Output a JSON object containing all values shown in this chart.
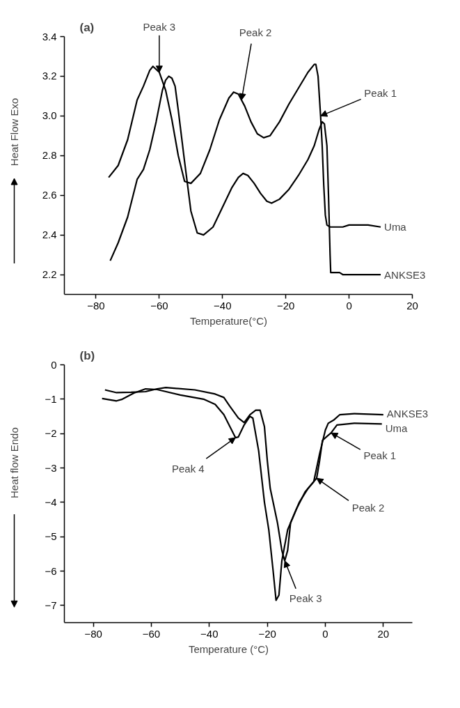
{
  "chart_data": [
    {
      "type": "line",
      "title": "(a)",
      "xlabel": "Temperature(°C)",
      "ylabel": "Heat Flow Exo",
      "xlim": [
        -90,
        20
      ],
      "ylim": [
        2.1,
        3.4
      ],
      "xticks": [
        -80,
        -60,
        -40,
        -20,
        0,
        20
      ],
      "yticks": [
        {
          "value": 2.2,
          "label": "2.2"
        },
        {
          "value": 2.4,
          "label": "2.4"
        },
        {
          "value": 2.6,
          "label": "2.6"
        },
        {
          "value": 2.8,
          "label": "2.8"
        },
        {
          "value": 3.0,
          "label": "3.0"
        },
        {
          "value": 3.2,
          "label": "3.2"
        },
        {
          "value": 3.4,
          "label": "3.4"
        }
      ],
      "grid": false,
      "series": [
        {
          "name": "Uma",
          "color": "#000000",
          "x": [
            -76,
            -73,
            -70,
            -67,
            -65,
            -63,
            -62,
            -60,
            -58,
            -56,
            -54,
            -52,
            -50,
            -47,
            -44,
            -41,
            -38,
            -36.5,
            -35,
            -33,
            -31,
            -29,
            -27,
            -25,
            -22,
            -19,
            -16,
            -13,
            -11,
            -10.5,
            -9.8,
            -9,
            -8.5,
            -8,
            -7.5,
            -7,
            -6,
            -4,
            -2,
            0,
            3,
            6,
            10
          ],
          "values": [
            2.69,
            2.75,
            2.88,
            3.08,
            3.15,
            3.23,
            3.25,
            3.22,
            3.13,
            2.98,
            2.8,
            2.67,
            2.66,
            2.71,
            2.83,
            2.98,
            3.09,
            3.12,
            3.11,
            3.05,
            2.97,
            2.91,
            2.89,
            2.9,
            2.97,
            3.06,
            3.14,
            3.22,
            3.26,
            3.26,
            3.2,
            3.0,
            2.85,
            2.65,
            2.5,
            2.45,
            2.44,
            2.44,
            2.44,
            2.45,
            2.45,
            2.45,
            2.44
          ]
        },
        {
          "name": "ANKSE3",
          "color": "#000000",
          "x": [
            -75.5,
            -73,
            -70,
            -67,
            -65,
            -63,
            -61,
            -59,
            -58,
            -57,
            -56,
            -55,
            -54,
            -52,
            -50,
            -48,
            -46,
            -43,
            -40,
            -37,
            -35,
            -33.5,
            -32,
            -30,
            -28,
            -26,
            -24.5,
            -22,
            -19,
            -16,
            -13,
            -11,
            -9.5,
            -8.5,
            -7.8,
            -7,
            -6.5,
            -6,
            -5.8,
            -3,
            -2,
            0,
            5,
            10
          ],
          "values": [
            2.27,
            2.36,
            2.49,
            2.68,
            2.73,
            2.83,
            2.97,
            3.13,
            3.18,
            3.2,
            3.19,
            3.15,
            3.03,
            2.77,
            2.52,
            2.41,
            2.4,
            2.44,
            2.54,
            2.64,
            2.69,
            2.71,
            2.7,
            2.66,
            2.61,
            2.57,
            2.56,
            2.58,
            2.63,
            2.7,
            2.78,
            2.85,
            2.93,
            2.97,
            2.96,
            2.85,
            2.6,
            2.3,
            2.21,
            2.21,
            2.2,
            2.2,
            2.2,
            2.2
          ]
        }
      ],
      "annotations": [
        {
          "text": "Peak 3",
          "x": -60,
          "y": 3.22
        },
        {
          "text": "Peak 2",
          "x": -34,
          "y": 3.08
        },
        {
          "text": "Peak 1",
          "x": -9,
          "y": 3.0
        }
      ]
    },
    {
      "type": "line",
      "title": "(b)",
      "xlabel": "Temperature (°C)",
      "ylabel": "Heat flow Endo",
      "xlim": [
        -90,
        30
      ],
      "ylim": [
        -7.5,
        0
      ],
      "xticks": [
        -80,
        -60,
        -40,
        -20,
        0,
        20
      ],
      "yticks": [
        0,
        -1,
        -2,
        -3,
        -4,
        -5,
        -6,
        -7
      ],
      "grid": false,
      "series": [
        {
          "name": "ANKSE3",
          "color": "#000000",
          "x": [
            -77,
            -72,
            -70,
            -66,
            -62,
            -58,
            -50,
            -42,
            -38,
            -35,
            -32,
            -31,
            -30,
            -28,
            -26,
            -25,
            -23,
            -21,
            -19.5,
            -18,
            -17,
            -16,
            -15,
            -13,
            -10,
            -7,
            -4,
            -2,
            0,
            1,
            3,
            5,
            10,
            20
          ],
          "values": [
            -0.98,
            -1.05,
            -1.0,
            -0.82,
            -0.7,
            -0.72,
            -0.88,
            -1.0,
            -1.15,
            -1.45,
            -1.95,
            -2.12,
            -2.1,
            -1.75,
            -1.5,
            -1.55,
            -2.5,
            -4.0,
            -4.8,
            -6.0,
            -6.85,
            -6.7,
            -5.7,
            -4.8,
            -4.2,
            -3.7,
            -3.4,
            -2.6,
            -1.9,
            -1.7,
            -1.6,
            -1.45,
            -1.42,
            -1.45
          ]
        },
        {
          "name": "Uma",
          "color": "#000000",
          "x": [
            -76,
            -72,
            -67,
            -62,
            -58,
            -55,
            -45,
            -38,
            -35,
            -33,
            -30,
            -28,
            -26,
            -24,
            -22.5,
            -21,
            -20,
            -19,
            -18,
            -16.5,
            -15,
            -14,
            -13,
            -12,
            -9,
            -6,
            -3,
            -2,
            -1,
            1,
            2,
            4,
            10,
            19.5
          ],
          "values": [
            -0.73,
            -0.81,
            -0.8,
            -0.78,
            -0.7,
            -0.66,
            -0.73,
            -0.85,
            -0.95,
            -1.2,
            -1.55,
            -1.68,
            -1.45,
            -1.32,
            -1.32,
            -1.8,
            -2.8,
            -3.6,
            -4.0,
            -4.6,
            -5.4,
            -5.7,
            -5.4,
            -4.6,
            -4.0,
            -3.6,
            -3.3,
            -2.8,
            -2.2,
            -2.05,
            -1.98,
            -1.75,
            -1.7,
            -1.72
          ]
        }
      ],
      "annotations": [
        {
          "text": "Peak 4",
          "x": -31,
          "y": -2.12
        },
        {
          "text": "Peak 1",
          "x": 2,
          "y": -1.98
        },
        {
          "text": "Peak 2",
          "x": -3,
          "y": -3.3
        },
        {
          "text": "Peak 3",
          "x": -14,
          "y": -5.7
        }
      ]
    }
  ]
}
